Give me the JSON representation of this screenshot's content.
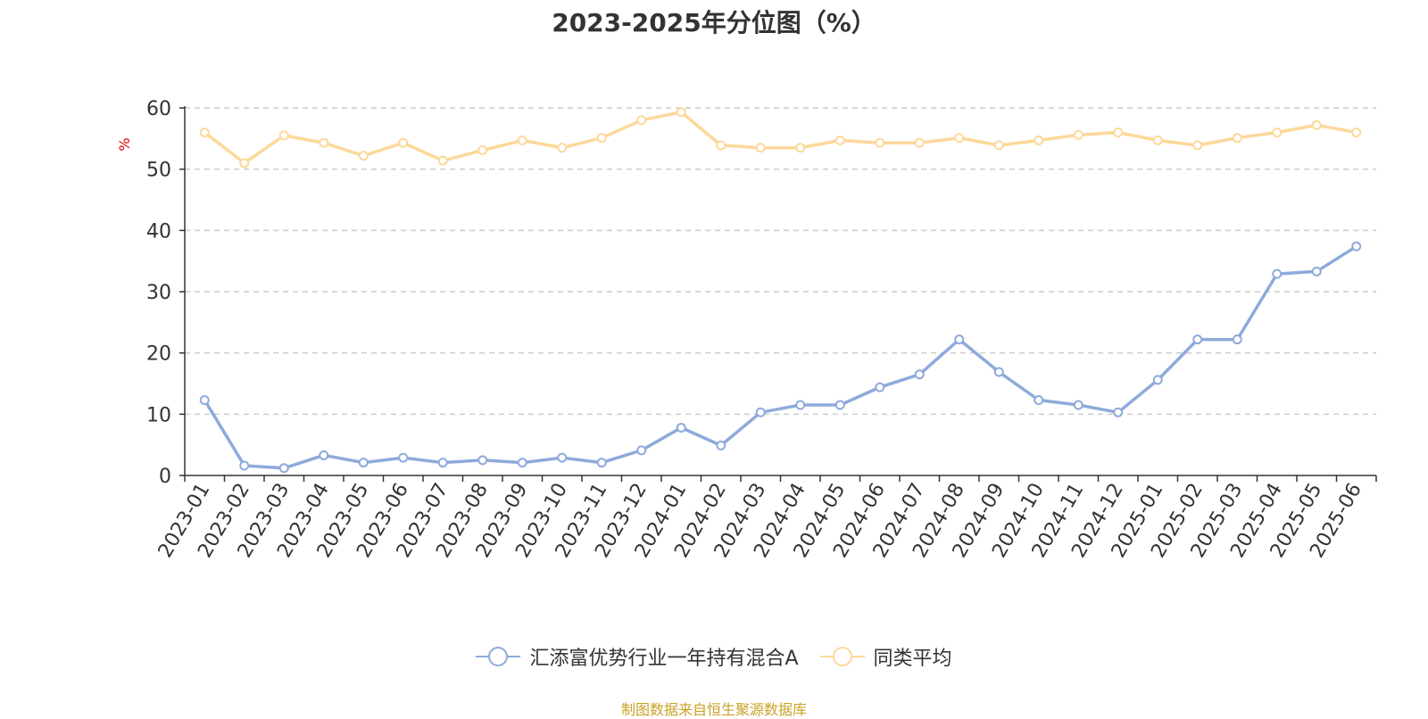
{
  "chart_data": {
    "type": "line",
    "title": "2023-2025年分位图（%）",
    "ylabel": "%",
    "xlabel": "",
    "ylim": [
      0,
      60
    ],
    "yticks": [
      0,
      10,
      20,
      30,
      40,
      50,
      60
    ],
    "grid": true,
    "legend_position": "bottom",
    "categories": [
      "2023-01",
      "2023-02",
      "2023-03",
      "2023-04",
      "2023-05",
      "2023-06",
      "2023-07",
      "2023-08",
      "2023-09",
      "2023-10",
      "2023-11",
      "2023-12",
      "2024-01",
      "2024-02",
      "2024-03",
      "2024-04",
      "2024-05",
      "2024-06",
      "2024-07",
      "2024-08",
      "2024-09",
      "2024-10",
      "2024-11",
      "2024-12",
      "2025-01",
      "2025-02",
      "2025-03",
      "2025-04",
      "2025-05",
      "2025-06"
    ],
    "series": [
      {
        "name": "汇添富优势行业一年持有混合A",
        "color": "#8eaadb",
        "values": [
          12.3,
          1.6,
          1.2,
          3.3,
          2.1,
          2.9,
          2.1,
          2.5,
          2.1,
          2.9,
          2.1,
          4.1,
          7.8,
          4.9,
          10.3,
          11.5,
          11.5,
          14.4,
          16.5,
          22.2,
          16.9,
          12.3,
          11.5,
          10.3,
          15.6,
          22.2,
          22.2,
          32.9,
          33.3,
          37.4
        ]
      },
      {
        "name": "同类平均",
        "color": "#fdd89a",
        "values": [
          56.0,
          51.0,
          55.5,
          54.3,
          52.2,
          54.3,
          51.4,
          53.1,
          54.7,
          53.5,
          55.1,
          58.0,
          59.3,
          53.9,
          53.5,
          53.5,
          54.7,
          54.3,
          54.3,
          55.1,
          53.9,
          54.7,
          55.6,
          56.0,
          54.7,
          53.9,
          55.1,
          56.0,
          57.2,
          56.0
        ]
      }
    ]
  },
  "source_note": "制图数据来自恒生聚源数据库"
}
